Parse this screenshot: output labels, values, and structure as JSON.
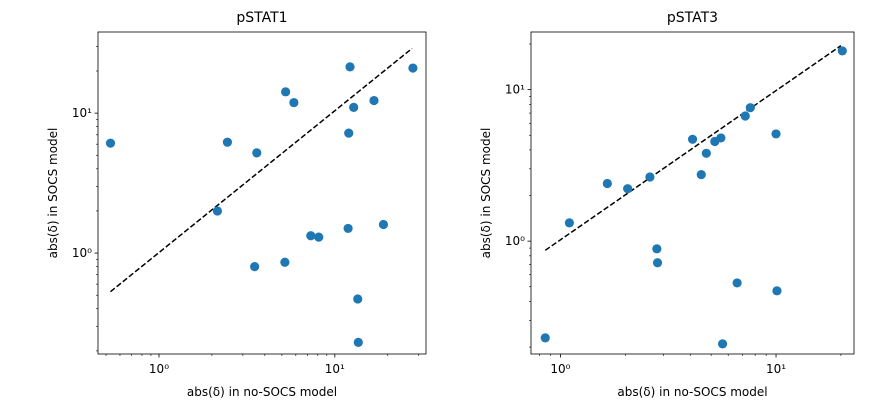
{
  "chart_data": [
    {
      "type": "scatter",
      "title": "pSTAT1",
      "xlabel": "abs(δ) in no-SOCS model",
      "ylabel": "abs(δ) in SOCS model",
      "xscale": "log",
      "yscale": "log",
      "xlim": [
        0.45,
        33
      ],
      "ylim": [
        0.19,
        38
      ],
      "xticks": [
        {
          "value": 1,
          "label": "10⁰"
        },
        {
          "value": 10,
          "label": "10¹"
        }
      ],
      "yticks": [
        {
          "value": 1,
          "label": "10⁰"
        },
        {
          "value": 10,
          "label": "10¹"
        }
      ],
      "marker_color": "#1f77b4",
      "reference_line": {
        "style": "dashed",
        "color": "#000000",
        "x": [
          0.53,
          27.5
        ],
        "y": [
          0.53,
          29.0
        ]
      },
      "series": [
        {
          "x": [
            0.53,
            2.15,
            2.45,
            3.5,
            3.6,
            5.2,
            5.25,
            5.85,
            7.3,
            8.1,
            11.9,
            12.0,
            12.2,
            12.8,
            13.5,
            13.6,
            16.7,
            18.9,
            27.8
          ],
          "y": [
            6.1,
            2.0,
            6.2,
            0.8,
            5.2,
            0.86,
            14.2,
            11.9,
            1.33,
            1.3,
            1.5,
            7.2,
            21.4,
            11.0,
            0.47,
            0.23,
            12.3,
            1.6,
            21.0
          ]
        }
      ]
    },
    {
      "type": "scatter",
      "title": "pSTAT3",
      "xlabel": "abs(δ) in no-SOCS model",
      "ylabel": "abs(δ) in SOCS model",
      "xscale": "log",
      "yscale": "log",
      "xlim": [
        0.73,
        23
      ],
      "ylim": [
        0.18,
        24
      ],
      "xticks": [
        {
          "value": 1,
          "label": "10⁰"
        },
        {
          "value": 10,
          "label": "10¹"
        }
      ],
      "yticks": [
        {
          "value": 1,
          "label": "10⁰"
        },
        {
          "value": 10,
          "label": "10¹"
        }
      ],
      "marker_color": "#1f77b4",
      "reference_line": {
        "style": "dashed",
        "color": "#000000",
        "x": [
          0.85,
          20.0
        ],
        "y": [
          0.87,
          19.5
        ]
      },
      "series": [
        {
          "x": [
            0.85,
            1.1,
            1.65,
            2.05,
            2.6,
            2.8,
            2.82,
            4.1,
            4.5,
            4.75,
            5.2,
            5.55,
            5.65,
            6.6,
            7.2,
            7.6,
            10.0,
            10.1,
            20.3
          ],
          "y": [
            0.23,
            1.32,
            2.4,
            2.22,
            2.65,
            0.89,
            0.72,
            4.7,
            2.75,
            3.8,
            4.55,
            4.8,
            0.21,
            0.53,
            6.7,
            7.6,
            5.1,
            0.47,
            18.0
          ]
        }
      ]
    }
  ]
}
